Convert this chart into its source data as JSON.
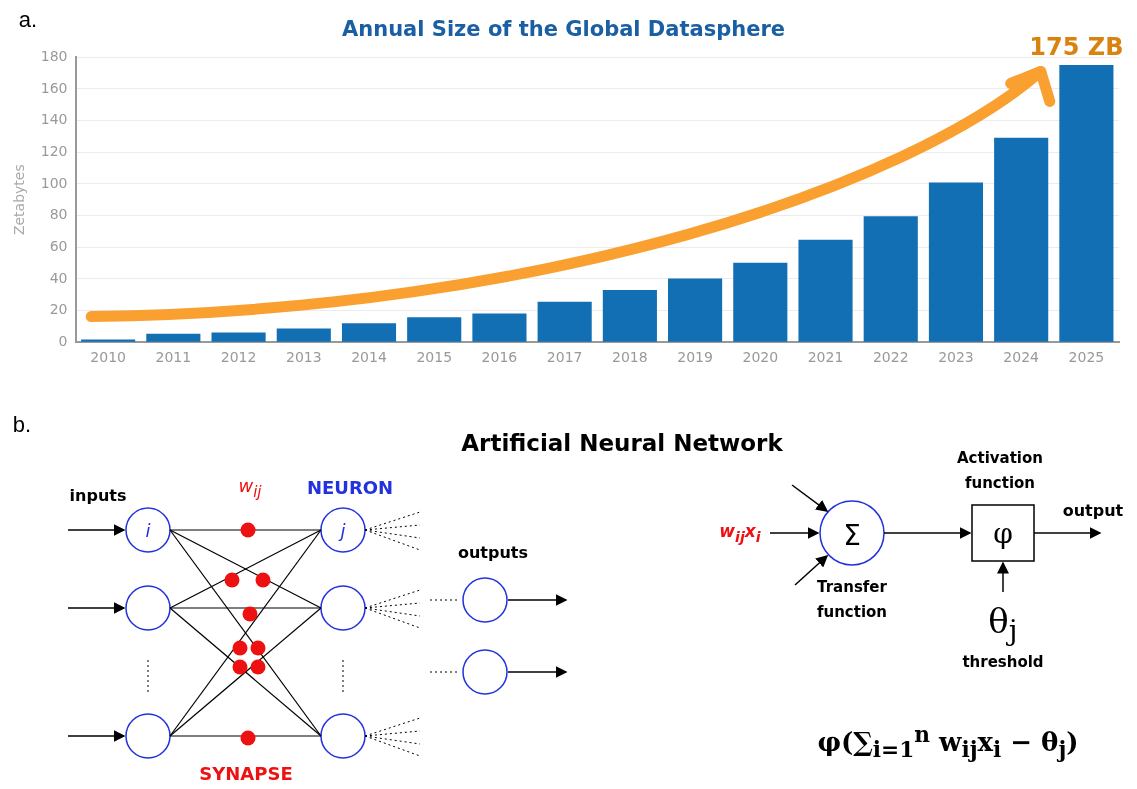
{
  "chart_data": [
    {
      "type": "bar",
      "title": "Annual Size of the Global Datasphere",
      "ylabel": "Zetabytes",
      "categories": [
        "2010",
        "2011",
        "2012",
        "2013",
        "2014",
        "2015",
        "2016",
        "2017",
        "2018",
        "2019",
        "2020",
        "2021",
        "2022",
        "2023",
        "2024",
        "2025"
      ],
      "values": [
        1.7,
        5.3,
        6.2,
        8.6,
        12,
        15.8,
        18.2,
        25.6,
        33,
        40.3,
        50.2,
        64.7,
        79.6,
        100.8,
        129.1,
        175
      ],
      "color": "#126fb3",
      "ylim": [
        0,
        180
      ],
      "yticks": [
        0,
        20,
        40,
        60,
        80,
        100,
        120,
        140,
        160,
        180
      ],
      "grid": "y",
      "annotations": [
        {
          "text": "175 ZB",
          "x": "2025",
          "y": 175
        },
        "a."
      ]
    },
    {
      "type": "other",
      "title": "Artificial Neural Network",
      "annotations": [
        "b.",
        "inputs",
        "w$_{ij}$",
        "NEURON",
        "i",
        "j",
        "outputs",
        "SYNAPSE",
        "w$_{ij}$x$_{i}$",
        "Σ",
        "Transfer function",
        "Activation function",
        "φ",
        "output",
        "θ$_{j}$",
        "threshold",
        "φ(∑$_{i=1}$$^{n}$ w$_{ij}$x$_{i}$ − θ$_{j}$)"
      ]
    }
  ]
}
